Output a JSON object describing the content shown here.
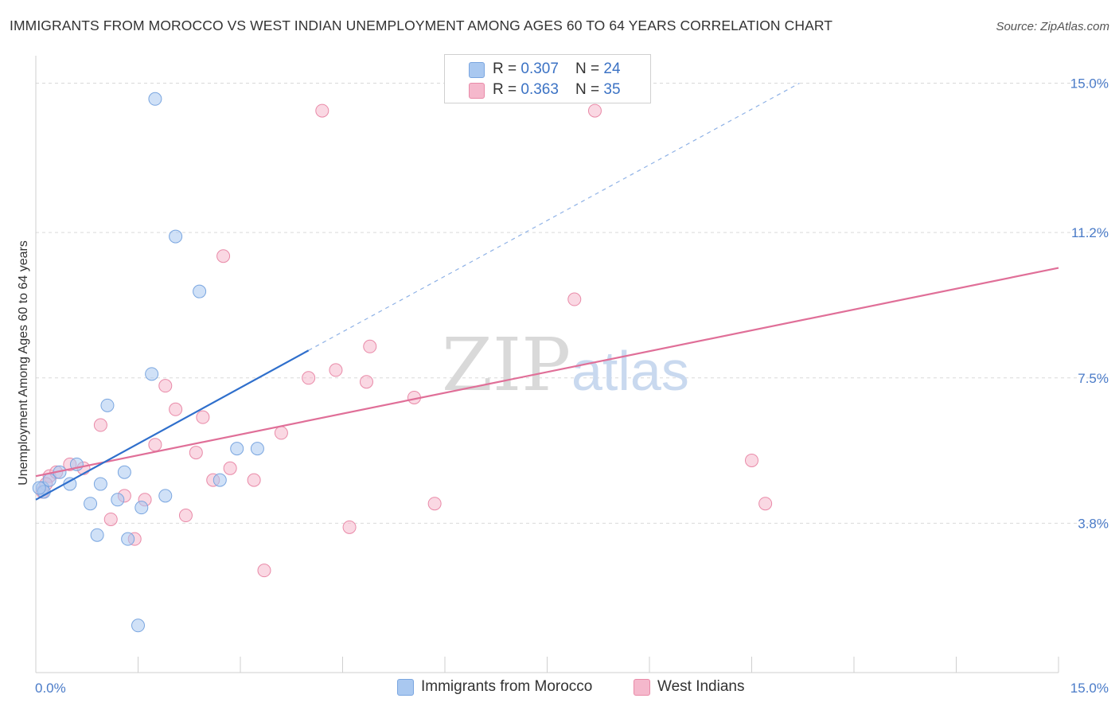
{
  "header": {
    "title": "IMMIGRANTS FROM MOROCCO VS WEST INDIAN UNEMPLOYMENT AMONG AGES 60 TO 64 YEARS CORRELATION CHART",
    "source": "Source: ZipAtlas.com"
  },
  "watermark": {
    "zip": "ZIP",
    "atlas": "atlas"
  },
  "legend": {
    "series1": {
      "r_label": "R = ",
      "r_value": "0.307",
      "n_label": "N = ",
      "n_value": "24",
      "color": "#a9c8f0"
    },
    "series2": {
      "r_label": "R = ",
      "r_value": "0.363",
      "n_label": "N = ",
      "n_value": "35",
      "color": "#f5b8cc"
    }
  },
  "bottom_legend": {
    "series1": "Immigrants from Morocco",
    "series2": "West Indians"
  },
  "chart_data": {
    "type": "scatter",
    "title": "IMMIGRANTS FROM MOROCCO VS WEST INDIAN UNEMPLOYMENT AMONG AGES 60 TO 64 YEARS CORRELATION CHART",
    "xlabel": "",
    "ylabel": "Unemployment Among Ages 60 to 64 years",
    "xlim": [
      0,
      15
    ],
    "ylim": [
      0,
      15.7
    ],
    "x_tick_labels": [
      "0.0%",
      "15.0%"
    ],
    "y_ticks": [
      3.8,
      7.5,
      11.2,
      15.0
    ],
    "y_tick_labels": [
      "3.8%",
      "7.5%",
      "11.2%",
      "15.0%"
    ],
    "grid": "horizontal dashed",
    "legend_position": "top-center",
    "series": [
      {
        "name": "Immigrants from Morocco",
        "color": "#a9c8f0",
        "stroke": "#7aa6e0",
        "points": [
          [
            0.1,
            4.7
          ],
          [
            0.2,
            4.9
          ],
          [
            0.35,
            5.1
          ],
          [
            0.5,
            4.8
          ],
          [
            0.6,
            5.3
          ],
          [
            0.8,
            4.3
          ],
          [
            0.9,
            3.5
          ],
          [
            0.95,
            4.8
          ],
          [
            1.05,
            6.8
          ],
          [
            1.2,
            4.4
          ],
          [
            1.3,
            5.1
          ],
          [
            1.35,
            3.4
          ],
          [
            1.5,
            1.2
          ],
          [
            1.55,
            4.2
          ],
          [
            1.7,
            7.6
          ],
          [
            1.75,
            14.6
          ],
          [
            1.9,
            4.5
          ],
          [
            2.05,
            11.1
          ],
          [
            2.4,
            9.7
          ],
          [
            2.7,
            4.9
          ],
          [
            2.95,
            5.7
          ],
          [
            3.25,
            5.7
          ],
          [
            0.12,
            4.6
          ],
          [
            0.05,
            4.7
          ]
        ],
        "trend_solid": [
          [
            0.0,
            4.4
          ],
          [
            4.0,
            8.2
          ]
        ],
        "trend_dashed": [
          [
            4.0,
            8.2
          ],
          [
            11.2,
            15.0
          ]
        ]
      },
      {
        "name": "West Indians",
        "color": "#f5b8cc",
        "stroke": "#e98aa8",
        "points": [
          [
            0.1,
            4.6
          ],
          [
            0.2,
            5.0
          ],
          [
            0.3,
            5.1
          ],
          [
            0.5,
            5.3
          ],
          [
            0.7,
            5.2
          ],
          [
            0.95,
            6.3
          ],
          [
            1.1,
            3.9
          ],
          [
            1.3,
            4.5
          ],
          [
            1.45,
            3.4
          ],
          [
            1.6,
            4.4
          ],
          [
            1.75,
            5.8
          ],
          [
            1.9,
            7.3
          ],
          [
            2.05,
            6.7
          ],
          [
            2.2,
            4.0
          ],
          [
            2.45,
            6.5
          ],
          [
            2.35,
            5.6
          ],
          [
            2.6,
            4.9
          ],
          [
            2.75,
            10.6
          ],
          [
            2.85,
            5.2
          ],
          [
            3.2,
            4.9
          ],
          [
            3.35,
            2.6
          ],
          [
            3.6,
            6.1
          ],
          [
            4.0,
            7.5
          ],
          [
            4.2,
            14.3
          ],
          [
            4.4,
            7.7
          ],
          [
            4.6,
            3.7
          ],
          [
            4.85,
            7.4
          ],
          [
            4.9,
            8.3
          ],
          [
            5.55,
            7.0
          ],
          [
            5.85,
            4.3
          ],
          [
            7.9,
            9.5
          ],
          [
            8.2,
            14.3
          ],
          [
            10.5,
            5.4
          ],
          [
            10.7,
            4.3
          ],
          [
            0.15,
            4.8
          ]
        ],
        "trend_solid": [
          [
            0.0,
            5.0
          ],
          [
            15.0,
            10.3
          ]
        ]
      }
    ]
  }
}
